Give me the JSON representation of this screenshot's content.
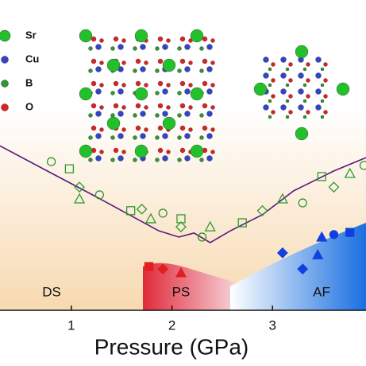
{
  "chart_data": {
    "type": "scatter",
    "xlabel": "Pressure (GPa)",
    "xlim": [
      0.29,
      3.93
    ],
    "xticks": [
      1,
      2,
      3
    ],
    "ylim": [
      0,
      100
    ],
    "atom_legend": [
      {
        "label": "Sr",
        "color": "#22c02a"
      },
      {
        "label": "Cu",
        "color": "#3344cc"
      },
      {
        "label": "B",
        "color": "#2e9a2e"
      },
      {
        "label": "O",
        "color": "#e02020"
      }
    ],
    "regions": [
      "DS",
      "PS",
      "AF"
    ],
    "line": {
      "color": "#5a1a7a",
      "x": [
        0.29,
        0.76,
        1.24,
        1.87,
        2.07,
        2.22,
        2.38,
        2.58,
        2.9,
        3.21,
        3.61,
        3.93
      ],
      "y": [
        53,
        44.9,
        36.7,
        25.6,
        23.6,
        24.9,
        21.8,
        25.6,
        30.8,
        38.5,
        44.9,
        49.2
      ]
    },
    "series": [
      {
        "color": "#2e9a2e",
        "filled": false,
        "x": [
          0.8,
          0.98,
          1.08,
          1.08,
          1.28,
          1.59,
          1.7,
          1.79,
          1.91,
          2.09,
          2.09,
          2.38,
          2.3,
          2.7,
          2.9,
          3.1,
          3.3,
          3.49,
          3.61,
          3.77,
          3.91
        ],
        "y": [
          47.9,
          45.6,
          39.7,
          35.9,
          37.2,
          32.1,
          32.6,
          29.5,
          31.3,
          29.5,
          26.9,
          26.9,
          23.6,
          28.2,
          32.1,
          35.9,
          34.6,
          43.1,
          39.7,
          44.1,
          46.7
        ]
      },
      {
        "color": "#e02020",
        "filled": true,
        "x": [
          1.77,
          1.91,
          2.09
        ],
        "y": [
          14.1,
          13.3,
          12.1
        ]
      },
      {
        "color": "#1040e0",
        "filled": true,
        "x": [
          3.1,
          3.49,
          3.61,
          3.77,
          3.3,
          3.45
        ],
        "y": [
          18.5,
          23.6,
          24.4,
          25.1,
          13.3,
          17.9
        ]
      }
    ]
  }
}
